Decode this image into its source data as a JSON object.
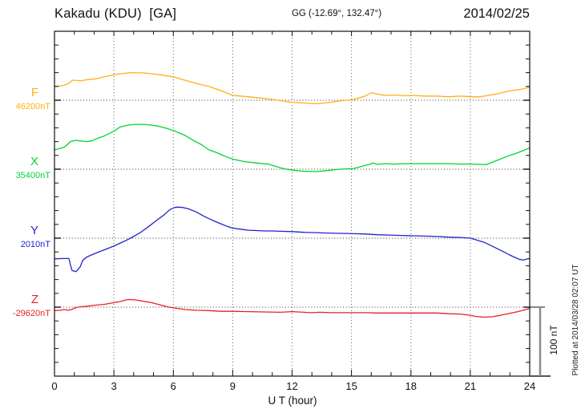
{
  "header": {
    "title": "Kakadu (KDU)  [GA]",
    "coordinates": "GG (-12.69°, 132.47°)",
    "date": "2014/02/25"
  },
  "scale_bar": {
    "label": "100 nT",
    "nT": 100
  },
  "watermark": "Plotted at 2014/03/28 02:07 UT",
  "chart_data": {
    "type": "line",
    "title": "Kakadu (KDU) [GA] magnetogram for 2014/02/25",
    "xlabel": "U T (hour)",
    "xlim": [
      0,
      24
    ],
    "xticks": {
      "hours": [
        0,
        3,
        6,
        9,
        12,
        15,
        18,
        21,
        24
      ],
      "labels": [
        "0",
        "3",
        "6",
        "9",
        "12",
        "15",
        "18",
        "21",
        "24"
      ]
    },
    "minor_tick_interval_hours": 1,
    "y_minor_tick_nT": 20,
    "scale_bar_nT": 100,
    "grid": "dotted vertical lines every 3 h; dotted horizontal baseline per component",
    "offsets_unit": "nT relative to component baseline",
    "series": [
      {
        "name": "F",
        "baseline_label": "46200nT",
        "baseline_nT": 46200,
        "color": "#FFAF14",
        "points": [
          [
            0,
            20
          ],
          [
            0.4,
            21
          ],
          [
            0.7,
            24
          ],
          [
            0.9,
            29
          ],
          [
            1.1,
            29
          ],
          [
            1.3,
            28
          ],
          [
            1.7,
            30
          ],
          [
            2.1,
            31
          ],
          [
            2.5,
            34
          ],
          [
            3,
            37
          ],
          [
            3.5,
            39
          ],
          [
            3.9,
            40
          ],
          [
            4.5,
            39.5
          ],
          [
            4.9,
            38.5
          ],
          [
            5.3,
            37
          ],
          [
            6,
            34
          ],
          [
            6.6,
            29
          ],
          [
            7.2,
            24
          ],
          [
            7.8,
            20
          ],
          [
            8.4,
            14
          ],
          [
            9,
            7
          ],
          [
            9.4,
            6
          ],
          [
            9.8,
            5
          ],
          [
            10.6,
            2.5
          ],
          [
            11.3,
            0
          ],
          [
            12,
            -3
          ],
          [
            12.6,
            -4
          ],
          [
            13.2,
            -5
          ],
          [
            13.8,
            -3.5
          ],
          [
            14.4,
            -1
          ],
          [
            15.1,
            1
          ],
          [
            15.7,
            6
          ],
          [
            16,
            11
          ],
          [
            16.3,
            9
          ],
          [
            16.7,
            7
          ],
          [
            17.1,
            7.5
          ],
          [
            17.7,
            6.5
          ],
          [
            18.1,
            7
          ],
          [
            18.7,
            6
          ],
          [
            19.3,
            6
          ],
          [
            19.9,
            5
          ],
          [
            20.5,
            6
          ],
          [
            21.1,
            5
          ],
          [
            21.5,
            5
          ],
          [
            21.9,
            7
          ],
          [
            22.3,
            9
          ],
          [
            22.9,
            13
          ],
          [
            23.6,
            16
          ],
          [
            24,
            19
          ]
        ]
      },
      {
        "name": "X",
        "baseline_label": "35400nT",
        "baseline_nT": 35400,
        "color": "#00D435",
        "points": [
          [
            0,
            28
          ],
          [
            0.5,
            32
          ],
          [
            0.8,
            40
          ],
          [
            1.1,
            42
          ],
          [
            1.3,
            41
          ],
          [
            1.6,
            40
          ],
          [
            1.9,
            41
          ],
          [
            2.1,
            44
          ],
          [
            2.5,
            48
          ],
          [
            3,
            55
          ],
          [
            3.3,
            61
          ],
          [
            3.7,
            64
          ],
          [
            4.1,
            65
          ],
          [
            4.5,
            65
          ],
          [
            4.9,
            64
          ],
          [
            5.3,
            62
          ],
          [
            5.7,
            59
          ],
          [
            6,
            56
          ],
          [
            6.6,
            49
          ],
          [
            7,
            42
          ],
          [
            7.4,
            36
          ],
          [
            7.8,
            28
          ],
          [
            8.2,
            24
          ],
          [
            8.6,
            19
          ],
          [
            9,
            14.5
          ],
          [
            9.6,
            11
          ],
          [
            10.2,
            9
          ],
          [
            10.8,
            7.5
          ],
          [
            11.4,
            2
          ],
          [
            11.8,
            -0.5
          ],
          [
            12.2,
            -2
          ],
          [
            12.6,
            -3
          ],
          [
            13.2,
            -3.5
          ],
          [
            13.8,
            -2
          ],
          [
            14.4,
            0
          ],
          [
            15.1,
            1
          ],
          [
            15.5,
            4
          ],
          [
            15.9,
            7
          ],
          [
            16.1,
            9
          ],
          [
            16.3,
            7
          ],
          [
            16.7,
            8
          ],
          [
            17.1,
            7.5
          ],
          [
            17.7,
            8
          ],
          [
            18.1,
            8
          ],
          [
            18.7,
            8
          ],
          [
            19.3,
            8
          ],
          [
            19.9,
            8
          ],
          [
            20.5,
            7.5
          ],
          [
            21.1,
            7.5
          ],
          [
            21.5,
            7
          ],
          [
            21.8,
            6.5
          ],
          [
            22.1,
            10
          ],
          [
            22.5,
            14.5
          ],
          [
            22.9,
            19
          ],
          [
            23.4,
            24
          ],
          [
            23.8,
            28.5
          ],
          [
            24,
            31
          ]
        ]
      },
      {
        "name": "Y",
        "baseline_label": "2010nT",
        "baseline_nT": 2010,
        "color": "#2222CC",
        "points": [
          [
            0,
            -30
          ],
          [
            0.4,
            -29.5
          ],
          [
            0.73,
            -29.5
          ],
          [
            0.81,
            -39
          ],
          [
            0.89,
            -47
          ],
          [
            1.09,
            -48.5
          ],
          [
            1.3,
            -41.5
          ],
          [
            1.42,
            -32.5
          ],
          [
            1.62,
            -27.5
          ],
          [
            1.9,
            -24
          ],
          [
            2.19,
            -20.5
          ],
          [
            2.51,
            -17
          ],
          [
            3,
            -11.5
          ],
          [
            3.52,
            -4.5
          ],
          [
            3.84,
            0
          ],
          [
            4.33,
            8
          ],
          [
            4.74,
            16.5
          ],
          [
            5.14,
            25.5
          ],
          [
            5.54,
            34
          ],
          [
            5.83,
            41.5
          ],
          [
            6.07,
            44.5
          ],
          [
            6.23,
            45
          ],
          [
            6.48,
            44.5
          ],
          [
            6.76,
            42.5
          ],
          [
            7.16,
            38
          ],
          [
            7.57,
            31.5
          ],
          [
            7.97,
            26
          ],
          [
            8.38,
            21
          ],
          [
            8.78,
            16.5
          ],
          [
            9,
            14.5
          ],
          [
            9.39,
            13
          ],
          [
            9.8,
            11.5
          ],
          [
            10.2,
            11
          ],
          [
            10.6,
            10.5
          ],
          [
            11,
            10.5
          ],
          [
            11.4,
            10
          ],
          [
            12,
            9.5
          ],
          [
            12.6,
            8.5
          ],
          [
            13.2,
            8
          ],
          [
            13.8,
            7.5
          ],
          [
            14.5,
            7
          ],
          [
            15.1,
            6.5
          ],
          [
            15.7,
            6
          ],
          [
            16.3,
            5
          ],
          [
            16.9,
            4.5
          ],
          [
            17.5,
            4
          ],
          [
            18.1,
            3.5
          ],
          [
            18.7,
            3
          ],
          [
            19.3,
            2.5
          ],
          [
            19.9,
            1.5
          ],
          [
            20.5,
            1
          ],
          [
            21,
            0
          ],
          [
            21.3,
            -2.5
          ],
          [
            21.7,
            -6
          ],
          [
            22.1,
            -11.5
          ],
          [
            22.6,
            -18.5
          ],
          [
            23,
            -24.5
          ],
          [
            23.3,
            -28.5
          ],
          [
            23.5,
            -31
          ],
          [
            23.7,
            -31.5
          ],
          [
            23.9,
            -30
          ],
          [
            24,
            -29.5
          ]
        ]
      },
      {
        "name": "Z",
        "baseline_label": "-29620nT",
        "baseline_nT": -29620,
        "color": "#E82222",
        "points": [
          [
            0,
            -5
          ],
          [
            0.3,
            -4.5
          ],
          [
            0.5,
            -3.5
          ],
          [
            0.7,
            -4.5
          ],
          [
            0.9,
            -3
          ],
          [
            1.1,
            -0.5
          ],
          [
            1.3,
            0.5
          ],
          [
            1.7,
            1.5
          ],
          [
            2.1,
            3
          ],
          [
            2.5,
            4
          ],
          [
            3,
            6.5
          ],
          [
            3.3,
            8
          ],
          [
            3.6,
            10.5
          ],
          [
            3.8,
            11
          ],
          [
            4.1,
            10.5
          ],
          [
            4.5,
            8.5
          ],
          [
            4.9,
            6.5
          ],
          [
            5.3,
            3.5
          ],
          [
            5.7,
            0.5
          ],
          [
            6,
            -1
          ],
          [
            6.6,
            -3.5
          ],
          [
            7.2,
            -4.5
          ],
          [
            7.8,
            -5
          ],
          [
            8.4,
            -6
          ],
          [
            9,
            -6
          ],
          [
            9.8,
            -6.5
          ],
          [
            10.6,
            -7
          ],
          [
            11.4,
            -7.5
          ],
          [
            12,
            -6.5
          ],
          [
            12.6,
            -7.5
          ],
          [
            13,
            -8
          ],
          [
            13.4,
            -7.5
          ],
          [
            14,
            -8
          ],
          [
            14.7,
            -8
          ],
          [
            15.1,
            -8
          ],
          [
            15.7,
            -8
          ],
          [
            16.3,
            -8.5
          ],
          [
            16.9,
            -8.5
          ],
          [
            17.5,
            -8.5
          ],
          [
            18.1,
            -8.5
          ],
          [
            18.7,
            -8.5
          ],
          [
            19.3,
            -8.5
          ],
          [
            19.9,
            -9.5
          ],
          [
            20.5,
            -10
          ],
          [
            20.9,
            -11.5
          ],
          [
            21.3,
            -13.5
          ],
          [
            21.7,
            -14.5
          ],
          [
            22.1,
            -14
          ],
          [
            22.5,
            -12
          ],
          [
            22.9,
            -9.5
          ],
          [
            23.4,
            -6.5
          ],
          [
            23.8,
            -3.5
          ],
          [
            24,
            -1.5
          ]
        ]
      }
    ]
  }
}
